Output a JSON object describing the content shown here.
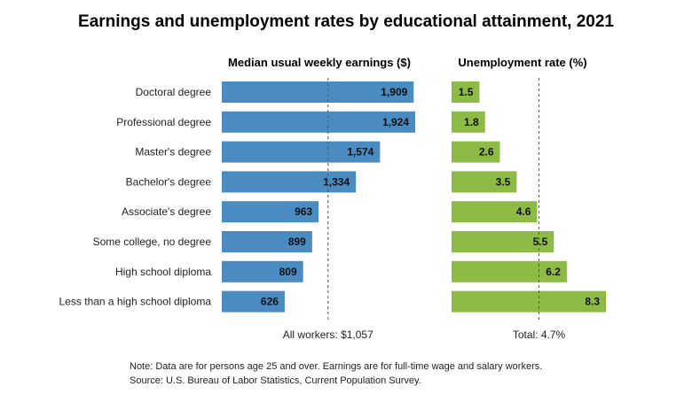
{
  "chart_data": {
    "type": "bar",
    "title": "Earnings and unemployment rates by educational attainment, 2021",
    "categories": [
      "Doctoral degree",
      "Professional degree",
      "Master's degree",
      "Bachelor's degree",
      "Associate's degree",
      "Some college, no degree",
      "High school diploma",
      "Less than a high school diploma"
    ],
    "series": [
      {
        "name": "Median usual weekly earnings ($)",
        "values": [
          1909,
          1924,
          1574,
          1334,
          963,
          899,
          809,
          626
        ],
        "labels": [
          "1,909",
          "1,924",
          "1,574",
          "1,334",
          "963",
          "899",
          "809",
          "626"
        ],
        "reference_value": 1057,
        "reference_label": "All workers: $1,057",
        "xlim": [
          0,
          1924
        ],
        "color": "#4a8bc2"
      },
      {
        "name": "Unemployment rate (%)",
        "values": [
          1.5,
          1.8,
          2.6,
          3.5,
          4.6,
          5.5,
          6.2,
          8.3
        ],
        "labels": [
          "1.5",
          "1.8",
          "2.6",
          "3.5",
          "4.6",
          "5.5",
          "6.2",
          "8.3"
        ],
        "reference_value": 4.7,
        "reference_label": "Total: 4.7%",
        "xlim": [
          0,
          8.3
        ],
        "color": "#8dbb46"
      }
    ]
  },
  "notes": {
    "line1": "Note: Data are for persons age 25 and over. Earnings are for full-time wage and salary workers.",
    "line2": "Source: U.S. Bureau of Labor Statistics, Current Population Survey."
  }
}
